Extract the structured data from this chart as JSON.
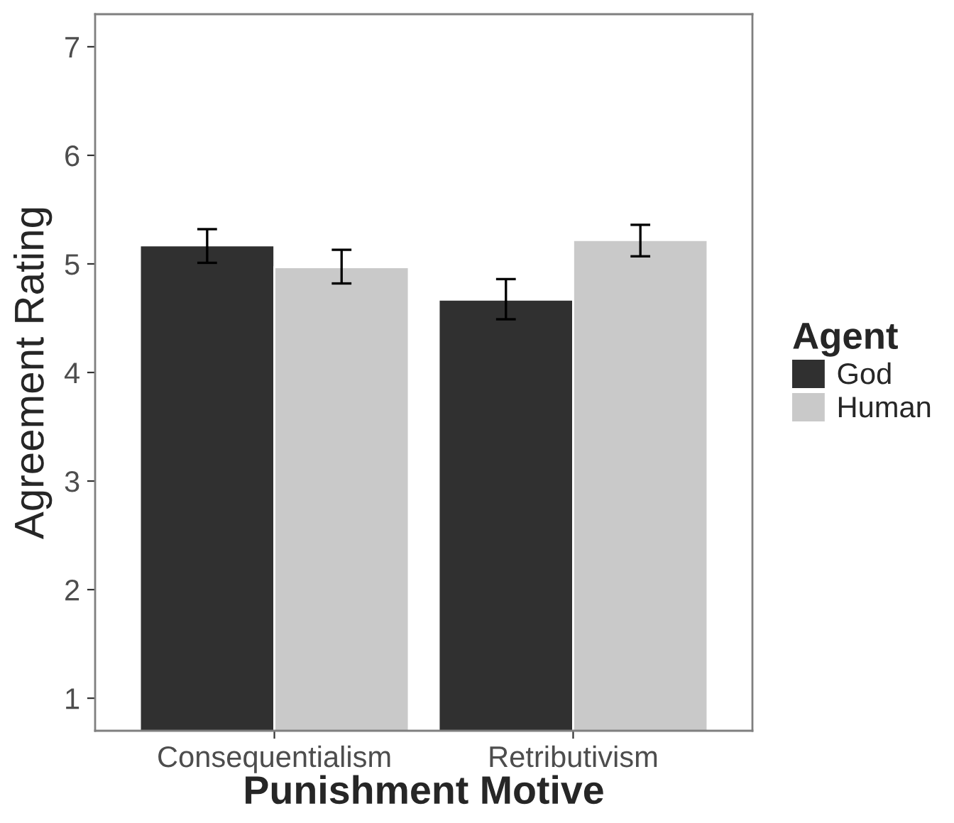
{
  "chart_data": {
    "type": "bar",
    "xlabel": "Punishment Motive",
    "ylabel": "Agreement Rating",
    "legend_title": "Agent",
    "categories": [
      "Consequentialism",
      "Retributivism"
    ],
    "series": [
      {
        "name": "God",
        "color": "#303030",
        "values": [
          5.17,
          4.67
        ],
        "errors": [
          [
            5.01,
            5.32
          ],
          [
            4.49,
            4.86
          ]
        ]
      },
      {
        "name": "Human",
        "color": "#c9c9c9",
        "values": [
          4.97,
          5.22
        ],
        "errors": [
          [
            4.82,
            5.13
          ],
          [
            5.07,
            5.36
          ]
        ]
      }
    ],
    "ylim": [
      0.7,
      7.3
    ],
    "yticks": [
      1,
      2,
      3,
      4,
      5,
      6,
      7
    ],
    "grid": false,
    "legend": "right"
  }
}
